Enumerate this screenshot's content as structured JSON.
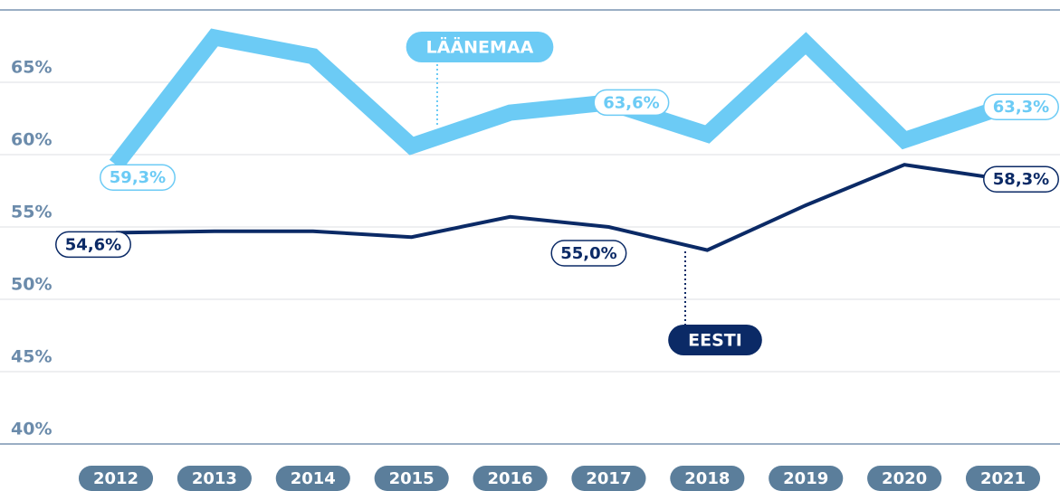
{
  "chart_data": {
    "type": "line",
    "categories": [
      "2012",
      "2013",
      "2014",
      "2015",
      "2016",
      "2017",
      "2018",
      "2019",
      "2020",
      "2021"
    ],
    "series": [
      {
        "name": "LÄÄNEMAA",
        "color": "#6ccbf5",
        "values": [
          59.3,
          68.1,
          66.8,
          60.6,
          62.9,
          63.6,
          61.4,
          67.7,
          61.0,
          63.3
        ],
        "value_labels": [
          "59,3%",
          null,
          null,
          null,
          null,
          "63,6%",
          null,
          null,
          null,
          "63,3%"
        ]
      },
      {
        "name": "EESTI",
        "color": "#0b2a66",
        "values": [
          54.6,
          54.7,
          54.7,
          54.3,
          55.7,
          55.0,
          53.4,
          56.5,
          59.3,
          58.3
        ],
        "value_labels": [
          "54,6%",
          null,
          null,
          null,
          null,
          "55,0%",
          null,
          null,
          null,
          "58,3%"
        ]
      }
    ],
    "ylim": [
      40,
      70
    ],
    "yticks": [
      {
        "value": 40,
        "label": "40%"
      },
      {
        "value": 45,
        "label": "45%"
      },
      {
        "value": 50,
        "label": "50%"
      },
      {
        "value": 55,
        "label": "55%"
      },
      {
        "value": 60,
        "label": "60%"
      },
      {
        "value": 65,
        "label": "65%"
      }
    ],
    "grid": true
  }
}
